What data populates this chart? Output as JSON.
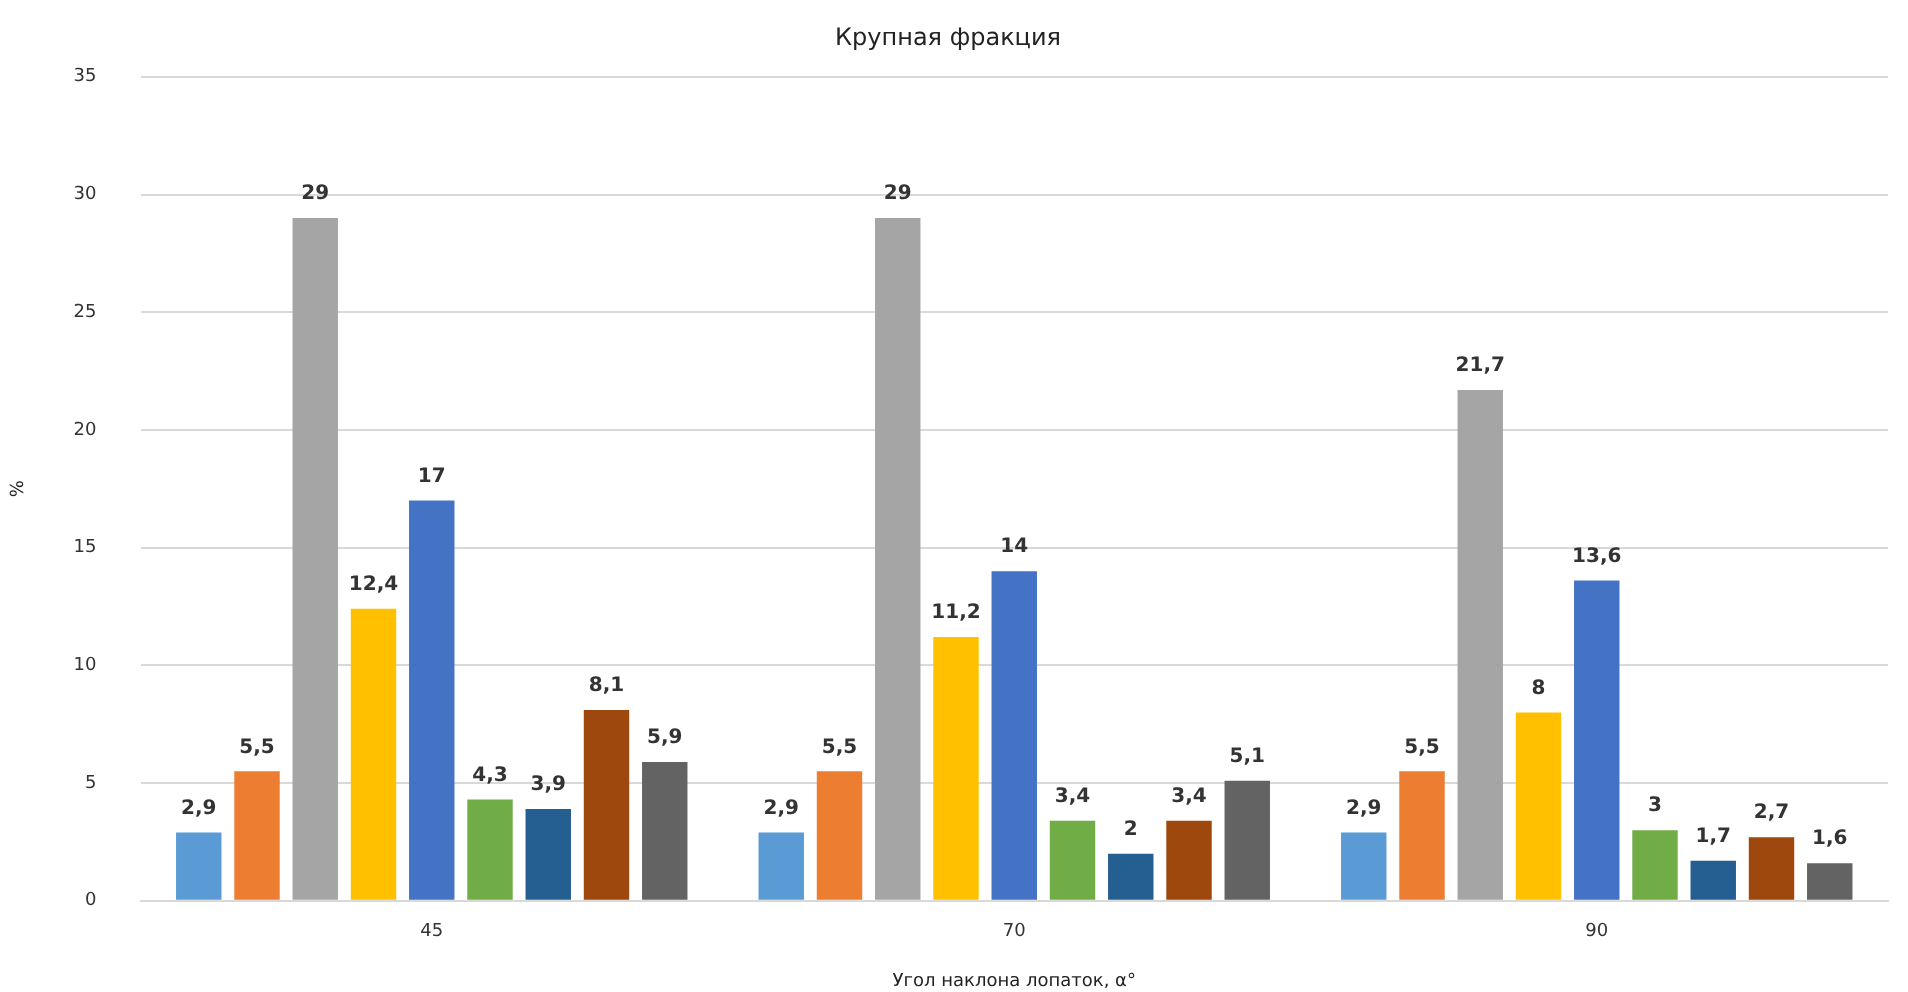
{
  "chart_data": {
    "type": "bar",
    "title": "Крупная фракция",
    "xlabel": "Угол наклона лопаток, α°",
    "ylabel": "%",
    "categories": [
      "45",
      "70",
      "90"
    ],
    "series": [
      {
        "color": "#5b9bd5",
        "values": [
          2.9,
          2.9,
          2.9
        ],
        "value_labels": [
          "2,9",
          "2,9",
          "2,9"
        ]
      },
      {
        "color": "#ed7d31",
        "values": [
          5.5,
          5.5,
          5.5
        ],
        "value_labels": [
          "5,5",
          "5,5",
          "5,5"
        ]
      },
      {
        "color": "#a5a5a5",
        "values": [
          29,
          29,
          21.7
        ],
        "value_labels": [
          "29",
          "29",
          "21,7"
        ]
      },
      {
        "color": "#ffc000",
        "values": [
          12.4,
          11.2,
          8
        ],
        "value_labels": [
          "12,4",
          "11,2",
          "8"
        ]
      },
      {
        "color": "#4472c4",
        "values": [
          17,
          14,
          13.6
        ],
        "value_labels": [
          "17",
          "14",
          "13,6"
        ]
      },
      {
        "color": "#70ad47",
        "values": [
          4.3,
          3.4,
          3
        ],
        "value_labels": [
          "4,3",
          "3,4",
          "3"
        ]
      },
      {
        "color": "#255e91",
        "values": [
          3.9,
          2,
          1.7
        ],
        "value_labels": [
          "3,9",
          "2",
          "1,7"
        ]
      },
      {
        "color": "#9e480e",
        "values": [
          8.1,
          3.4,
          2.7
        ],
        "value_labels": [
          "8,1",
          "3,4",
          "2,7"
        ]
      },
      {
        "color": "#636363",
        "values": [
          5.9,
          5.1,
          1.6
        ],
        "value_labels": [
          "5,9",
          "5,1",
          "1,6"
        ]
      }
    ],
    "ylim": [
      0,
      35
    ],
    "yticks": [
      0,
      5,
      10,
      15,
      20,
      25,
      30,
      35
    ],
    "grid": "y",
    "legend": false
  }
}
